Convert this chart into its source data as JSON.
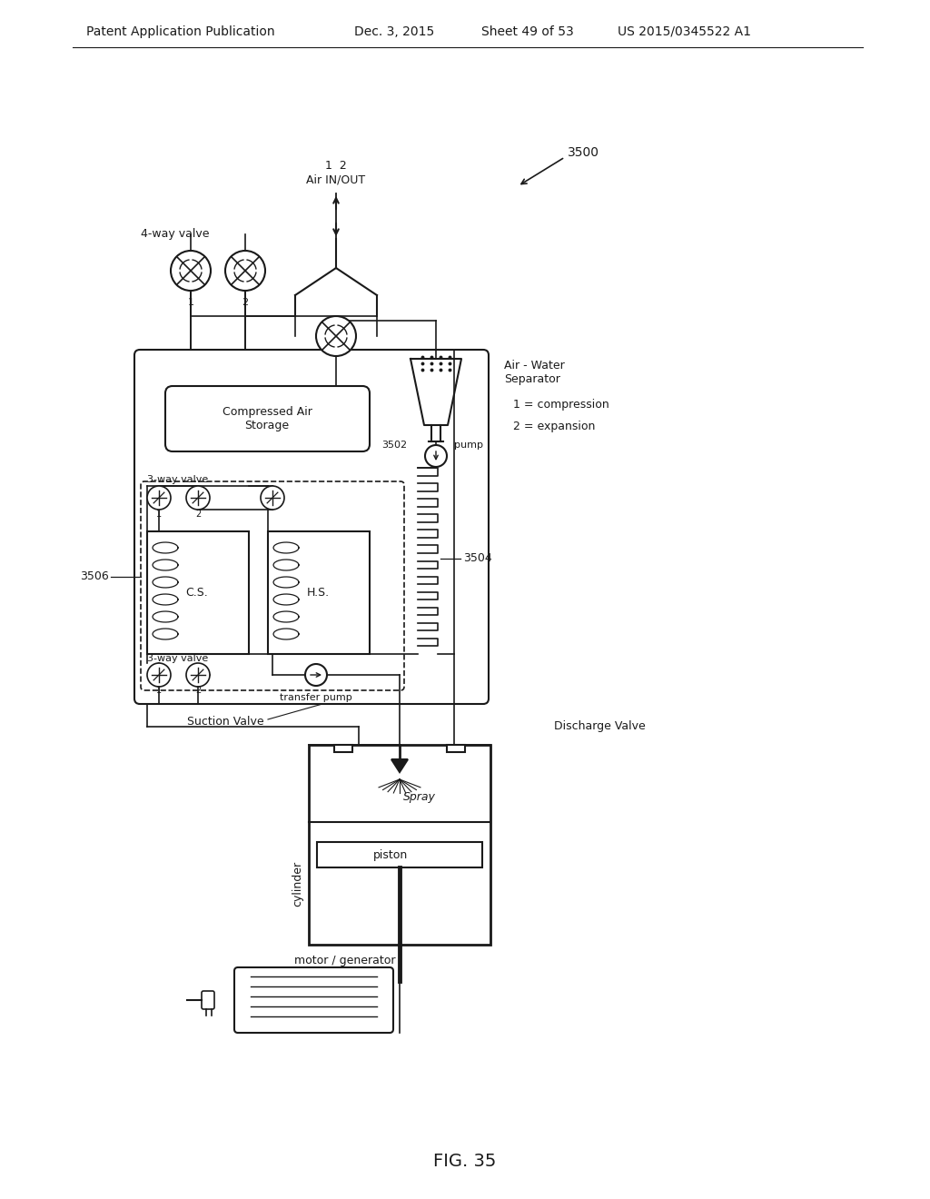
{
  "bg_color": "#ffffff",
  "line_color": "#1a1a1a",
  "header_text": "Patent Application Publication",
  "header_date": "Dec. 3, 2015",
  "header_sheet": "Sheet 49 of 53",
  "header_patent": "US 2015/0345522 A1",
  "fig_label": "FIG. 35",
  "title_label": "3500",
  "label_3502": "3502",
  "label_3504": "3504",
  "label_3506": "3506",
  "text_air_inout": "Air IN/OUT",
  "text_12_top": "1  2",
  "text_4way": "4-way valve",
  "text_labels_12": [
    "1",
    "2"
  ],
  "text_air_water": "Air - Water\nSeparator",
  "text_compressed": "Compressed Air\nStorage",
  "text_3way_top": "3-way valve",
  "text_3way_bot": "3-way valve",
  "text_pump": "pump",
  "text_cs": "C.S.",
  "text_hs": "H.S.",
  "text_transfer": "transfer pump",
  "text_suction": "Suction Valve",
  "text_discharge": "Discharge Valve",
  "text_spray": "Spray",
  "text_cylinder": "cylinder",
  "text_piston": "piston",
  "text_motor": "motor / generator",
  "text_1comp": "1 = compression",
  "text_2exp": "2 = expansion"
}
